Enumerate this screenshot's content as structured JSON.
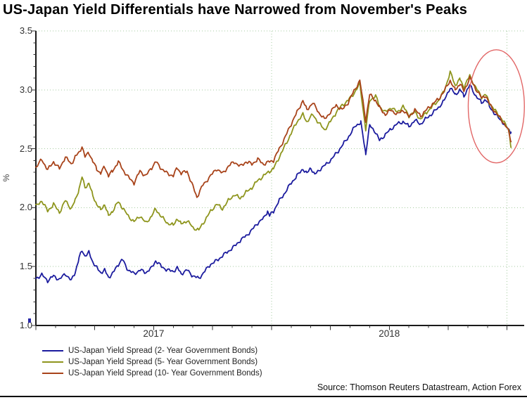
{
  "source_note": "Source: Thomson Reuters Datastream, Action Forex",
  "y_axis": {
    "label": "%",
    "tick_labels": [
      "3.5",
      "3.0",
      "2.5",
      "2.0",
      "1.5",
      "1.0"
    ]
  },
  "x_axis": {
    "year_labels": [
      "2017",
      "2018"
    ]
  },
  "colors": {
    "background": "#ffffff",
    "grid": "#a6cba0",
    "axis": "#1a1a1a",
    "tick": "#333333",
    "series_2y": "#1b1b9e",
    "series_5y": "#8e951d",
    "series_10y": "#a8431a",
    "ellipse": "#e26767"
  },
  "chart_data": {
    "type": "line",
    "title": "US-Japan Yield Differentials have Narrowed from November's Peaks",
    "x_unit": "months since Jan 2017",
    "xlim": [
      0,
      24.87
    ],
    "ylim": [
      1.0,
      3.5
    ],
    "ylabel": "%",
    "y_major_step": 0.5,
    "y_minor_step": 0.1,
    "x_major_tick_months": 3,
    "x_minor_tick_months": 1,
    "year_gridlines_t": [
      12,
      24
    ],
    "year_label_positions_t": [
      6,
      18
    ],
    "grid": "dotted light green, major y levels and year boundaries",
    "legend_position": "bottom-left",
    "jitter_amplitude": 0.018,
    "series": [
      {
        "name": "US-Japan Yield Spread (2- Year Government Bonds)",
        "color_key": "series_2y",
        "points": [
          [
            0,
            1.4
          ],
          [
            0.3,
            1.43
          ],
          [
            0.6,
            1.38
          ],
          [
            0.9,
            1.42
          ],
          [
            1.2,
            1.39
          ],
          [
            1.5,
            1.44
          ],
          [
            1.8,
            1.38
          ],
          [
            2.0,
            1.45
          ],
          [
            2.2,
            1.57
          ],
          [
            2.35,
            1.64
          ],
          [
            2.5,
            1.59
          ],
          [
            2.7,
            1.62
          ],
          [
            2.9,
            1.54
          ],
          [
            3.1,
            1.49
          ],
          [
            3.3,
            1.45
          ],
          [
            3.5,
            1.47
          ],
          [
            3.7,
            1.41
          ],
          [
            3.9,
            1.44
          ],
          [
            4.2,
            1.52
          ],
          [
            4.4,
            1.56
          ],
          [
            4.7,
            1.47
          ],
          [
            5.0,
            1.44
          ],
          [
            5.3,
            1.47
          ],
          [
            5.6,
            1.45
          ],
          [
            5.9,
            1.49
          ],
          [
            6.1,
            1.55
          ],
          [
            6.4,
            1.5
          ],
          [
            6.7,
            1.47
          ],
          [
            7.0,
            1.46
          ],
          [
            7.2,
            1.49
          ],
          [
            7.4,
            1.44
          ],
          [
            7.7,
            1.47
          ],
          [
            8.0,
            1.42
          ],
          [
            8.3,
            1.4
          ],
          [
            8.6,
            1.46
          ],
          [
            8.9,
            1.52
          ],
          [
            9.2,
            1.55
          ],
          [
            9.5,
            1.59
          ],
          [
            9.8,
            1.63
          ],
          [
            10.1,
            1.67
          ],
          [
            10.4,
            1.72
          ],
          [
            10.7,
            1.76
          ],
          [
            11.0,
            1.81
          ],
          [
            11.3,
            1.87
          ],
          [
            11.6,
            1.91
          ],
          [
            11.8,
            1.97
          ],
          [
            11.9,
            1.93
          ],
          [
            12.1,
            1.97
          ],
          [
            12.4,
            2.06
          ],
          [
            12.7,
            2.13
          ],
          [
            13.0,
            2.21
          ],
          [
            13.3,
            2.27
          ],
          [
            13.6,
            2.33
          ],
          [
            13.8,
            2.29
          ],
          [
            14.0,
            2.34
          ],
          [
            14.2,
            2.28
          ],
          [
            14.5,
            2.33
          ],
          [
            14.8,
            2.37
          ],
          [
            15.1,
            2.42
          ],
          [
            15.4,
            2.48
          ],
          [
            15.7,
            2.55
          ],
          [
            16.0,
            2.62
          ],
          [
            16.3,
            2.7
          ],
          [
            16.55,
            2.72
          ],
          [
            16.8,
            2.46
          ],
          [
            17.0,
            2.7
          ],
          [
            17.3,
            2.64
          ],
          [
            17.5,
            2.57
          ],
          [
            17.8,
            2.62
          ],
          [
            18.1,
            2.67
          ],
          [
            18.4,
            2.71
          ],
          [
            18.7,
            2.73
          ],
          [
            19.0,
            2.69
          ],
          [
            19.3,
            2.74
          ],
          [
            19.6,
            2.71
          ],
          [
            19.9,
            2.76
          ],
          [
            20.2,
            2.8
          ],
          [
            20.5,
            2.85
          ],
          [
            20.8,
            2.91
          ],
          [
            21.1,
            3.02
          ],
          [
            21.35,
            2.96
          ],
          [
            21.6,
            3.0
          ],
          [
            21.8,
            2.95
          ],
          [
            22.1,
            3.04
          ],
          [
            22.4,
            2.95
          ],
          [
            22.7,
            2.89
          ],
          [
            22.9,
            2.92
          ],
          [
            23.1,
            2.86
          ],
          [
            23.4,
            2.79
          ],
          [
            23.7,
            2.74
          ],
          [
            23.9,
            2.7
          ],
          [
            24.1,
            2.66
          ],
          [
            24.2,
            2.64
          ]
        ]
      },
      {
        "name": "US-Japan Yield Spread (5- Year Government Bonds)",
        "color_key": "series_5y",
        "points": [
          [
            0,
            2.01
          ],
          [
            0.3,
            2.06
          ],
          [
            0.6,
            1.97
          ],
          [
            0.9,
            2.03
          ],
          [
            1.2,
            1.96
          ],
          [
            1.5,
            2.06
          ],
          [
            1.8,
            1.99
          ],
          [
            2.0,
            2.06
          ],
          [
            2.2,
            2.16
          ],
          [
            2.35,
            2.26
          ],
          [
            2.5,
            2.17
          ],
          [
            2.7,
            2.21
          ],
          [
            2.9,
            2.1
          ],
          [
            3.1,
            2.03
          ],
          [
            3.3,
            1.98
          ],
          [
            3.5,
            2.03
          ],
          [
            3.7,
            1.93
          ],
          [
            3.9,
            1.97
          ],
          [
            4.2,
            2.05
          ],
          [
            4.4,
            2.0
          ],
          [
            4.7,
            1.93
          ],
          [
            5.0,
            1.88
          ],
          [
            5.3,
            1.93
          ],
          [
            5.6,
            1.87
          ],
          [
            5.9,
            1.93
          ],
          [
            6.1,
            1.99
          ],
          [
            6.4,
            1.92
          ],
          [
            6.7,
            1.87
          ],
          [
            7.0,
            1.85
          ],
          [
            7.2,
            1.91
          ],
          [
            7.4,
            1.86
          ],
          [
            7.7,
            1.89
          ],
          [
            8.0,
            1.83
          ],
          [
            8.3,
            1.81
          ],
          [
            8.6,
            1.89
          ],
          [
            8.9,
            1.97
          ],
          [
            9.2,
            2.03
          ],
          [
            9.5,
            1.99
          ],
          [
            9.8,
            2.06
          ],
          [
            10.1,
            2.11
          ],
          [
            10.4,
            2.08
          ],
          [
            10.7,
            2.13
          ],
          [
            11.0,
            2.17
          ],
          [
            11.3,
            2.23
          ],
          [
            11.6,
            2.27
          ],
          [
            11.9,
            2.31
          ],
          [
            12.1,
            2.33
          ],
          [
            12.4,
            2.43
          ],
          [
            12.7,
            2.53
          ],
          [
            13.0,
            2.63
          ],
          [
            13.3,
            2.73
          ],
          [
            13.6,
            2.79
          ],
          [
            13.8,
            2.73
          ],
          [
            14.1,
            2.79
          ],
          [
            14.4,
            2.72
          ],
          [
            14.7,
            2.66
          ],
          [
            15.0,
            2.73
          ],
          [
            15.3,
            2.81
          ],
          [
            15.6,
            2.87
          ],
          [
            15.9,
            2.91
          ],
          [
            16.2,
            2.97
          ],
          [
            16.5,
            3.05
          ],
          [
            16.8,
            2.66
          ],
          [
            17.0,
            2.91
          ],
          [
            17.3,
            2.95
          ],
          [
            17.5,
            2.86
          ],
          [
            17.8,
            2.81
          ],
          [
            18.1,
            2.85
          ],
          [
            18.4,
            2.81
          ],
          [
            18.7,
            2.86
          ],
          [
            19.0,
            2.78
          ],
          [
            19.3,
            2.81
          ],
          [
            19.6,
            2.75
          ],
          [
            19.9,
            2.81
          ],
          [
            20.2,
            2.86
          ],
          [
            20.5,
            2.91
          ],
          [
            20.8,
            2.99
          ],
          [
            21.1,
            3.15
          ],
          [
            21.35,
            3.04
          ],
          [
            21.6,
            3.09
          ],
          [
            21.8,
            3.02
          ],
          [
            22.1,
            3.12
          ],
          [
            22.4,
            3.02
          ],
          [
            22.7,
            2.94
          ],
          [
            22.9,
            2.96
          ],
          [
            23.1,
            2.89
          ],
          [
            23.4,
            2.82
          ],
          [
            23.7,
            2.76
          ],
          [
            23.9,
            2.71
          ],
          [
            24.1,
            2.66
          ],
          [
            24.2,
            2.51
          ]
        ]
      },
      {
        "name": "US-Japan Yield Spread (10- Year Government Bonds)",
        "color_key": "series_10y",
        "points": [
          [
            0,
            2.34
          ],
          [
            0.3,
            2.41
          ],
          [
            0.6,
            2.32
          ],
          [
            0.9,
            2.39
          ],
          [
            1.2,
            2.33
          ],
          [
            1.5,
            2.43
          ],
          [
            1.8,
            2.37
          ],
          [
            2.0,
            2.43
          ],
          [
            2.2,
            2.47
          ],
          [
            2.35,
            2.52
          ],
          [
            2.5,
            2.43
          ],
          [
            2.7,
            2.47
          ],
          [
            2.9,
            2.39
          ],
          [
            3.1,
            2.33
          ],
          [
            3.3,
            2.29
          ],
          [
            3.5,
            2.35
          ],
          [
            3.7,
            2.27
          ],
          [
            3.9,
            2.31
          ],
          [
            4.2,
            2.39
          ],
          [
            4.4,
            2.33
          ],
          [
            4.7,
            2.26
          ],
          [
            5.0,
            2.21
          ],
          [
            5.3,
            2.31
          ],
          [
            5.6,
            2.27
          ],
          [
            5.9,
            2.34
          ],
          [
            6.1,
            2.39
          ],
          [
            6.4,
            2.33
          ],
          [
            6.7,
            2.29
          ],
          [
            7.0,
            2.27
          ],
          [
            7.2,
            2.34
          ],
          [
            7.4,
            2.29
          ],
          [
            7.7,
            2.31
          ],
          [
            8.0,
            2.18
          ],
          [
            8.2,
            2.09
          ],
          [
            8.5,
            2.19
          ],
          [
            8.9,
            2.27
          ],
          [
            9.2,
            2.33
          ],
          [
            9.5,
            2.29
          ],
          [
            9.8,
            2.35
          ],
          [
            10.1,
            2.39
          ],
          [
            10.4,
            2.35
          ],
          [
            10.7,
            2.39
          ],
          [
            11.0,
            2.37
          ],
          [
            11.3,
            2.41
          ],
          [
            11.6,
            2.37
          ],
          [
            11.9,
            2.39
          ],
          [
            12.1,
            2.4
          ],
          [
            12.4,
            2.5
          ],
          [
            12.7,
            2.6
          ],
          [
            13.0,
            2.71
          ],
          [
            13.3,
            2.81
          ],
          [
            13.6,
            2.91
          ],
          [
            13.8,
            2.83
          ],
          [
            14.1,
            2.89
          ],
          [
            14.4,
            2.81
          ],
          [
            14.7,
            2.75
          ],
          [
            15.0,
            2.81
          ],
          [
            15.3,
            2.87
          ],
          [
            15.6,
            2.83
          ],
          [
            15.9,
            2.89
          ],
          [
            16.2,
            2.99
          ],
          [
            16.5,
            3.08
          ],
          [
            16.8,
            2.74
          ],
          [
            17.0,
            2.96
          ],
          [
            17.3,
            2.91
          ],
          [
            17.5,
            2.85
          ],
          [
            17.8,
            2.79
          ],
          [
            18.1,
            2.83
          ],
          [
            18.4,
            2.79
          ],
          [
            18.7,
            2.83
          ],
          [
            19.0,
            2.77
          ],
          [
            19.3,
            2.83
          ],
          [
            19.6,
            2.78
          ],
          [
            19.9,
            2.83
          ],
          [
            20.2,
            2.88
          ],
          [
            20.5,
            2.92
          ],
          [
            20.8,
            2.99
          ],
          [
            21.1,
            3.08
          ],
          [
            21.35,
            3.0
          ],
          [
            21.6,
            3.05
          ],
          [
            21.8,
            2.99
          ],
          [
            22.1,
            3.1
          ],
          [
            22.4,
            3.01
          ],
          [
            22.7,
            2.93
          ],
          [
            22.9,
            2.95
          ],
          [
            23.1,
            2.88
          ],
          [
            23.4,
            2.81
          ],
          [
            23.7,
            2.75
          ],
          [
            23.9,
            2.7
          ],
          [
            24.1,
            2.64
          ],
          [
            24.2,
            2.56
          ]
        ]
      }
    ],
    "annotations": [
      {
        "type": "ellipse",
        "meaning": "highlights narrowing from November's peaks",
        "t_center": 23.45,
        "v_center": 2.86,
        "t_radius": 1.43,
        "v_radius": 0.48
      }
    ]
  }
}
